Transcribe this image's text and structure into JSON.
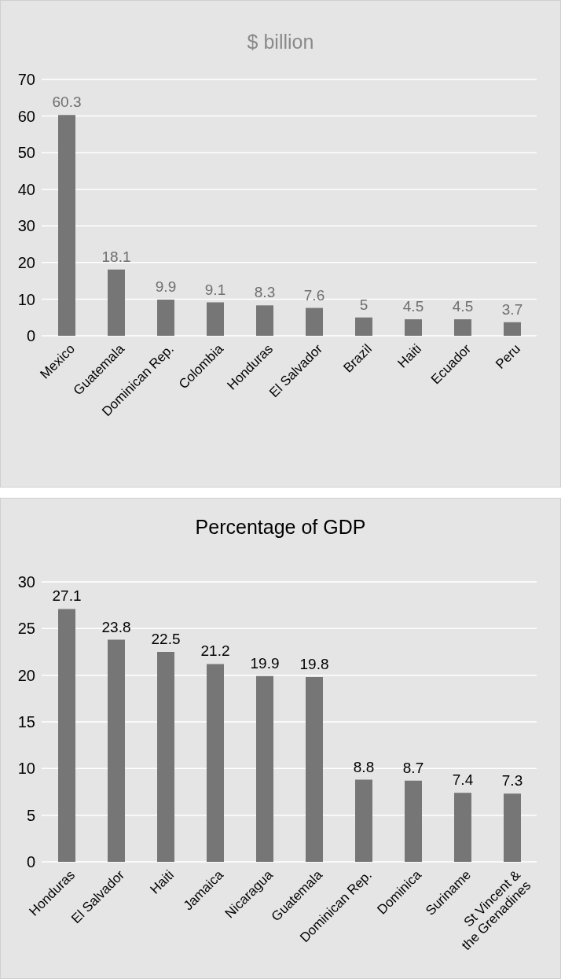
{
  "chart_data": [
    {
      "type": "bar",
      "title": "$ billion",
      "categories": [
        "Mexico",
        "Guatemala",
        "Dominican Rep.",
        "Colombia",
        "Honduras",
        "El Salvador",
        "Brazil",
        "Haiti",
        "Ecuador",
        "Peru"
      ],
      "values": [
        60.3,
        18.1,
        9.9,
        9.1,
        8.3,
        7.6,
        5,
        4.5,
        4.5,
        3.7
      ],
      "color": "#767676",
      "ylim": [
        0,
        70
      ],
      "yticks": [
        0,
        10,
        20,
        30,
        40,
        50,
        60,
        70
      ],
      "grid": "y",
      "data_labels": true,
      "legend": false
    },
    {
      "type": "bar",
      "title": "Percentage of GDP",
      "categories": [
        "Honduras",
        "El Salvador",
        "Haiti",
        "Jamaica",
        "Nicaragua",
        "Guatemala",
        "Dominican Rep.",
        "Dominica",
        "Suriname",
        "St Vincent & the Grenadines"
      ],
      "values": [
        27.1,
        23.8,
        22.5,
        21.2,
        19.9,
        19.8,
        8.8,
        8.7,
        7.4,
        7.3
      ],
      "color": "#767676",
      "ylim": [
        0,
        30
      ],
      "yticks": [
        0,
        5,
        10,
        15,
        20,
        25,
        30
      ],
      "grid": "y",
      "data_labels": true,
      "legend": false
    }
  ]
}
